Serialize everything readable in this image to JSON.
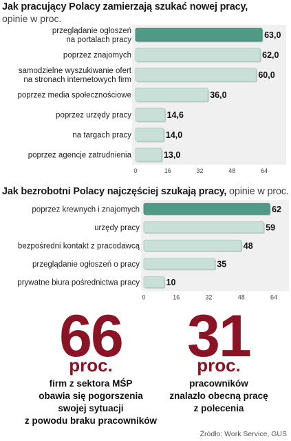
{
  "chart1": {
    "title_bold": "Jak pracujący Polacy zamierzają szukać nowej pracy,",
    "subtitle": "opinie w proc.",
    "chart_data": {
      "type": "bar",
      "orientation": "horizontal",
      "categories": [
        "przeglądanie ogłoszeń\nna portalach pracy",
        "poprzez znajomych",
        "samodzielne wyszukiwanie ofert\nna stronach internetowych firm",
        "poprzez media społecznościowe",
        "poprzez urzędy pracy",
        "na targach pracy",
        "poprzez agencje zatrudnienia"
      ],
      "values": [
        63.0,
        62.0,
        60.0,
        36.0,
        14.6,
        14.0,
        13.0
      ],
      "value_labels": [
        "63,0",
        "62,0",
        "60,0",
        "36,0",
        "14,6",
        "14,0",
        "13,0"
      ],
      "xlim": [
        0,
        64
      ],
      "ticks": [
        "0",
        "16",
        "32",
        "48",
        "64"
      ],
      "highlight_index": 0
    }
  },
  "chart2": {
    "title_bold": "Jak bezrobotni Polacy najczęściej szukają pracy,",
    "title_regular": " opinie w proc.",
    "chart_data": {
      "type": "bar",
      "orientation": "horizontal",
      "categories": [
        "poprzez krewnych i znajomych",
        "urzędy pracy",
        "bezpośredni kontakt z pracodawcą",
        "przeglądanie ogłoszeń o pracy",
        "prywatne biura pośrednictwa pracy"
      ],
      "values": [
        62,
        59,
        48,
        35,
        10
      ],
      "value_labels": [
        "62",
        "59",
        "48",
        "35",
        "10"
      ],
      "xlim": [
        0,
        64
      ],
      "ticks": [
        "0",
        "16",
        "32",
        "48",
        "64"
      ],
      "highlight_index": 0
    }
  },
  "stats": [
    {
      "number": "66",
      "unit": "proc.",
      "description": "firm z sektora MŚP\nobawia się pogorszenia\nswojej sytuacji\nz powodu braku pracowników"
    },
    {
      "number": "31",
      "unit": "proc.",
      "description": "pracowników\nznalazło obecną pracę\nz polecenia"
    }
  ],
  "source": "Źródło: Work Service, GUS",
  "colors": {
    "highlight_bar": "#4e9a86",
    "bar": "#c8e0d7",
    "bar_shadow": "#9aa8a3",
    "accent_red": "#8a1426"
  }
}
